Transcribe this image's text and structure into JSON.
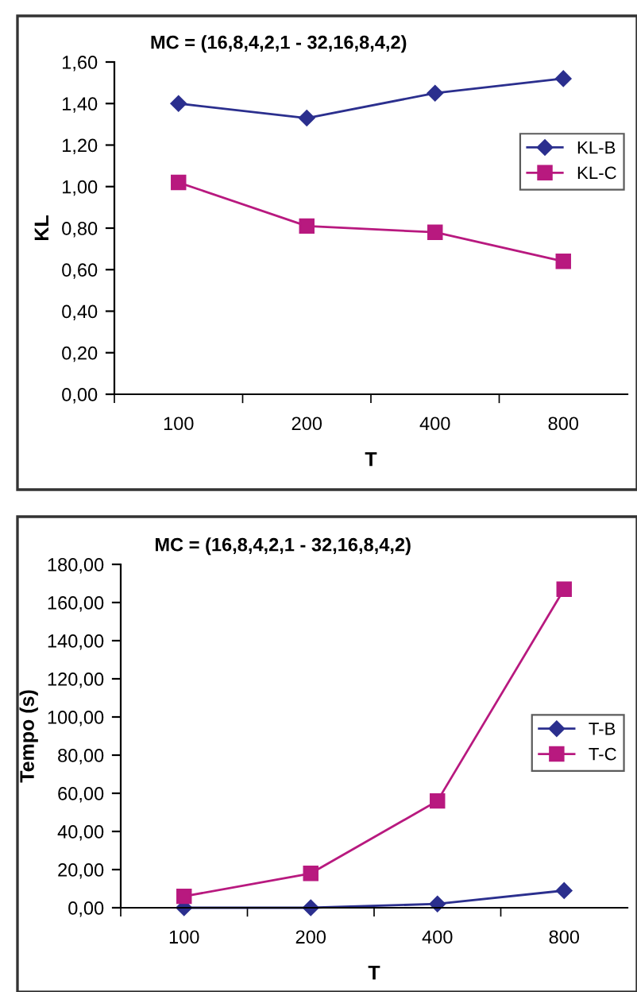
{
  "chart_data": [
    {
      "type": "line",
      "title": "MC = (16,8,4,2,1 - 32,16,8,4,2)",
      "xlabel": "T",
      "ylabel": "KL",
      "categories": [
        "100",
        "200",
        "400",
        "800"
      ],
      "series": [
        {
          "name": "KL-B",
          "color": "#2b2f8e",
          "marker": "diamond",
          "values": [
            1.4,
            1.33,
            1.45,
            1.52
          ]
        },
        {
          "name": "KL-C",
          "color": "#b8197f",
          "marker": "square",
          "values": [
            1.02,
            0.81,
            0.78,
            0.64
          ]
        }
      ],
      "ylim": [
        0,
        1.6
      ],
      "yticks": [
        {
          "value": 0,
          "label": "0,00"
        },
        {
          "value": 0.2,
          "label": "0,20"
        },
        {
          "value": 0.4,
          "label": "0,40"
        },
        {
          "value": 0.6,
          "label": "0,60"
        },
        {
          "value": 0.8,
          "label": "0,80"
        },
        {
          "value": 1.0,
          "label": "1,00"
        },
        {
          "value": 1.2,
          "label": "1,20"
        },
        {
          "value": 1.4,
          "label": "1,40"
        },
        {
          "value": 1.6,
          "label": "1,60"
        }
      ],
      "grid": false,
      "legend": "right",
      "line_style": "solid"
    },
    {
      "type": "line",
      "title": "MC = (16,8,4,2,1 - 32,16,8,4,2)",
      "xlabel": "T",
      "ylabel": "Tempo (s)",
      "categories": [
        "100",
        "200",
        "400",
        "800"
      ],
      "series": [
        {
          "name": "T-B",
          "color": "#2b2f8e",
          "marker": "diamond",
          "values": [
            0,
            0,
            2,
            9
          ]
        },
        {
          "name": "T-C",
          "color": "#b8197f",
          "marker": "square",
          "values": [
            6,
            18,
            56,
            167
          ]
        }
      ],
      "ylim": [
        0,
        180
      ],
      "yticks": [
        {
          "value": 0,
          "label": "0,00"
        },
        {
          "value": 20,
          "label": "20,00"
        },
        {
          "value": 40,
          "label": "40,00"
        },
        {
          "value": 60,
          "label": "60,00"
        },
        {
          "value": 80,
          "label": "80,00"
        },
        {
          "value": 100,
          "label": "100,00"
        },
        {
          "value": 120,
          "label": "120,00"
        },
        {
          "value": 140,
          "label": "140,00"
        },
        {
          "value": 160,
          "label": "160,00"
        },
        {
          "value": 180,
          "label": "180,00"
        }
      ],
      "grid": false,
      "legend": "right",
      "line_style": "solid"
    }
  ]
}
